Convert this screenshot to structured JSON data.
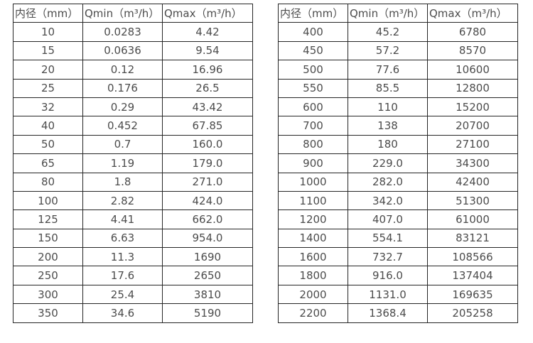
{
  "colors": {
    "background": "#ffffff",
    "table_border": "#262626",
    "text": "#4c4c4c"
  },
  "tables": [
    {
      "name": "small-diameter-flow-table",
      "headers": [
        "内径（mm）",
        "Qmin（m³/h）",
        "Qmax（m³/h）"
      ],
      "rows": [
        [
          "10",
          "0.0283",
          "4.42"
        ],
        [
          "15",
          "0.0636",
          "9.54"
        ],
        [
          "20",
          "0.12",
          "16.96"
        ],
        [
          "25",
          "0.176",
          "26.5"
        ],
        [
          "32",
          "0.29",
          "43.42"
        ],
        [
          "40",
          "0.452",
          "67.85"
        ],
        [
          "50",
          "0.7",
          "160.0"
        ],
        [
          "65",
          "1.19",
          "179.0"
        ],
        [
          "80",
          "1.8",
          "271.0"
        ],
        [
          "100",
          "2.82",
          "424.0"
        ],
        [
          "125",
          "4.41",
          "662.0"
        ],
        [
          "150",
          "6.63",
          "954.0"
        ],
        [
          "200",
          "11.3",
          "1690"
        ],
        [
          "250",
          "17.6",
          "2650"
        ],
        [
          "300",
          "25.4",
          "3810"
        ],
        [
          "350",
          "34.6",
          "5190"
        ]
      ]
    },
    {
      "name": "large-diameter-flow-table",
      "headers": [
        "内径（mm）",
        "Qmin（m³/h）",
        "Qmax（m³/h）"
      ],
      "rows": [
        [
          "400",
          "45.2",
          "6780"
        ],
        [
          "450",
          "57.2",
          "8570"
        ],
        [
          "500",
          "77.6",
          "10600"
        ],
        [
          "550",
          "85.5",
          "12800"
        ],
        [
          "600",
          "110",
          "15200"
        ],
        [
          "700",
          "138",
          "20700"
        ],
        [
          "800",
          "180",
          "27100"
        ],
        [
          "900",
          "229.0",
          "34300"
        ],
        [
          "1000",
          "282.0",
          "42400"
        ],
        [
          "1100",
          "342.0",
          "51300"
        ],
        [
          "1200",
          "407.0",
          "61000"
        ],
        [
          "1400",
          "554.1",
          "83121"
        ],
        [
          "1600",
          "732.7",
          "108566"
        ],
        [
          "1800",
          "916.0",
          "137404"
        ],
        [
          "2000",
          "1131.0",
          "169635"
        ],
        [
          "2200",
          "1368.4",
          "205258"
        ]
      ]
    }
  ]
}
